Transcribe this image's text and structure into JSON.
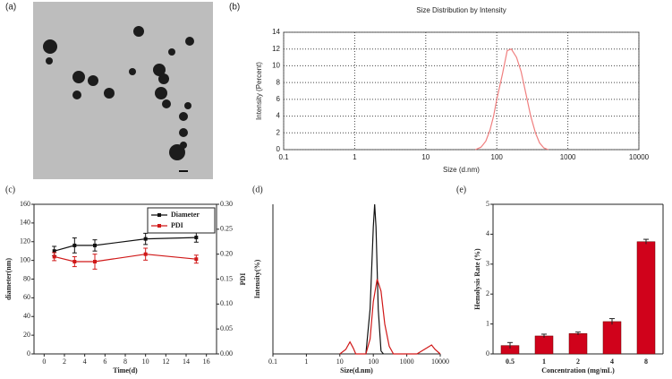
{
  "chart_data": [
    {
      "type": "image",
      "label": "(a)"
    },
    {
      "type": "line",
      "label": "(b)",
      "title": "Size Distribution by Intensity",
      "xlabel": "Size (d.nm)",
      "ylabel": "Intensity (Percent)",
      "xscale": "log",
      "xlim": [
        0.1,
        10000
      ],
      "xticks": [
        0.1,
        1,
        10,
        100,
        1000,
        10000
      ],
      "ylim": [
        0,
        14
      ],
      "yticks": [
        0,
        2,
        4,
        6,
        8,
        10,
        12,
        14
      ],
      "grid": true,
      "x": [
        50,
        60,
        70,
        80,
        90,
        100,
        120,
        140,
        160,
        190,
        220,
        260,
        300,
        350,
        400,
        460,
        530
      ],
      "series": [
        {
          "color": "#f07f7f",
          "values": [
            0,
            0.3,
            1,
            2.3,
            4,
            6,
            9,
            11.8,
            12,
            11,
            9.3,
            6.5,
            4,
            2,
            0.8,
            0.2,
            0
          ]
        }
      ]
    },
    {
      "type": "line",
      "label": "(c)",
      "xlabel": "Time(d)",
      "ylabel": "diameter(nm)",
      "y2label": "PDI",
      "xlim": [
        -1,
        17
      ],
      "xticks": [
        0,
        2,
        4,
        6,
        8,
        10,
        12,
        14,
        16
      ],
      "ylim": [
        0,
        160
      ],
      "yticks": [
        0,
        20,
        40,
        60,
        80,
        100,
        120,
        140,
        160
      ],
      "y2lim": [
        0,
        0.3
      ],
      "y2ticks": [
        {
          "value": 0,
          "label": "0.00"
        },
        {
          "value": 0.05,
          "label": "0.05"
        },
        {
          "value": 0.1,
          "label": "0.10"
        },
        {
          "value": 0.15,
          "label": "0.15"
        },
        {
          "value": 0.2,
          "label": "0.20"
        },
        {
          "value": 0.25,
          "label": "0.25"
        },
        {
          "value": 0.3,
          "label": "0.30"
        }
      ],
      "legend": "upper right",
      "x": [
        1,
        3,
        5,
        10,
        15
      ],
      "series": [
        {
          "name": "Diameter",
          "color": "#111111",
          "values": [
            110,
            116,
            116,
            123,
            124.5
          ],
          "errors": [
            5,
            8,
            6,
            6,
            5
          ]
        },
        {
          "name": "PDI",
          "color": "#d01818",
          "axis": "y2",
          "values": [
            0.195,
            0.185,
            0.185,
            0.2,
            0.19
          ],
          "errors": [
            0.008,
            0.01,
            0.015,
            0.012,
            0.008
          ]
        }
      ]
    },
    {
      "type": "line",
      "label": "(d)",
      "xlabel": "Size(d.nm)",
      "ylabel": "Intensity(%)",
      "xscale": "log",
      "xlim": [
        0.1,
        10000
      ],
      "xticks": [
        0.1,
        1,
        10,
        100,
        1000,
        10000
      ],
      "ylim": [
        0,
        1
      ],
      "series": [
        {
          "color": "#111111",
          "x": [
            60,
            80,
            100,
            110,
            120,
            140,
            170,
            200
          ],
          "values": [
            0,
            0.3,
            0.85,
            1,
            0.85,
            0.3,
            0.02,
            0
          ]
        },
        {
          "color": "#d01818",
          "x": [
            10,
            15,
            20,
            25,
            30,
            40,
            60,
            80,
            100,
            130,
            170,
            220,
            300,
            400,
            600,
            1000,
            2000,
            4000,
            5500,
            7000,
            10000
          ],
          "values": [
            0,
            0.03,
            0.08,
            0.04,
            0,
            0,
            0,
            0.1,
            0.35,
            0.5,
            0.42,
            0.2,
            0.05,
            0,
            0,
            0,
            0,
            0.04,
            0.06,
            0.03,
            0
          ]
        }
      ]
    },
    {
      "type": "bar",
      "label": "(e)",
      "xlabel": "Concentration (mg/mL)",
      "ylabel": "Hemolysis Rate (%)",
      "categories": [
        "0.5",
        "1",
        "2",
        "4",
        "8"
      ],
      "values": [
        0.28,
        0.6,
        0.68,
        1.08,
        3.75
      ],
      "errors": [
        0.1,
        0.06,
        0.05,
        0.1,
        0.08
      ],
      "color": "#d0021b",
      "ylim": [
        0,
        5
      ],
      "yticks": [
        0,
        1,
        2,
        3,
        4,
        5
      ]
    }
  ]
}
